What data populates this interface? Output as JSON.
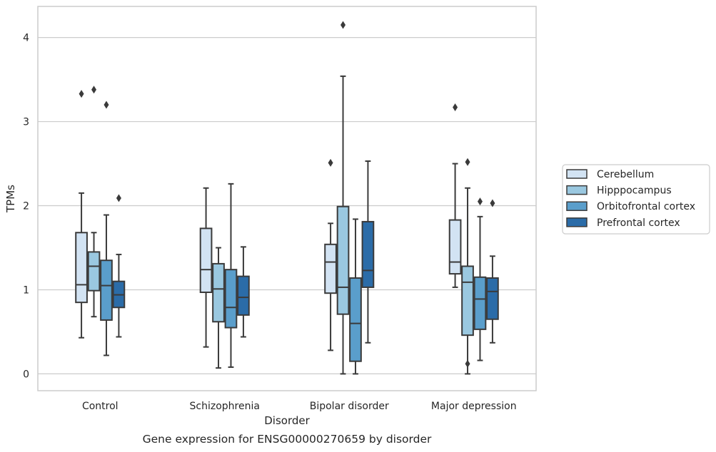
{
  "chart_data": {
    "type": "box",
    "caption": "Gene expression for ENSG00000270659 by disorder",
    "xlabel": "Disorder",
    "ylabel": "TPMs",
    "ylim": [
      -0.2,
      4.37
    ],
    "yticks": [
      0,
      1,
      2,
      3,
      4
    ],
    "categories": [
      "Control",
      "Schizophrenia",
      "Bipolar disorder",
      "Major depression"
    ],
    "grid": "horizontal",
    "legend_position": "right",
    "series": [
      {
        "name": "Cerebellum",
        "color": "#d2e3f3",
        "boxes": [
          {
            "whisker_low": 0.43,
            "q1": 0.85,
            "median": 1.06,
            "q3": 1.68,
            "whisker_high": 2.15,
            "outliers": [
              3.33
            ]
          },
          {
            "whisker_low": 0.32,
            "q1": 0.97,
            "median": 1.24,
            "q3": 1.73,
            "whisker_high": 2.21,
            "outliers": []
          },
          {
            "whisker_low": 0.28,
            "q1": 0.96,
            "median": 1.33,
            "q3": 1.54,
            "whisker_high": 1.79,
            "outliers": [
              2.51
            ]
          },
          {
            "whisker_low": 1.03,
            "q1": 1.19,
            "median": 1.33,
            "q3": 1.83,
            "whisker_high": 2.5,
            "outliers": [
              3.17
            ]
          }
        ]
      },
      {
        "name": "Hipppocampus",
        "color": "#9ac8e0",
        "boxes": [
          {
            "whisker_low": 0.68,
            "q1": 0.99,
            "median": 1.28,
            "q3": 1.45,
            "whisker_high": 1.68,
            "outliers": [
              3.38
            ]
          },
          {
            "whisker_low": 0.07,
            "q1": 0.62,
            "median": 1.01,
            "q3": 1.31,
            "whisker_high": 1.5,
            "outliers": []
          },
          {
            "whisker_low": 0.0,
            "q1": 0.71,
            "median": 1.03,
            "q3": 1.99,
            "whisker_high": 3.54,
            "outliers": [
              4.15
            ]
          },
          {
            "whisker_low": 0.0,
            "q1": 0.46,
            "median": 1.09,
            "q3": 1.28,
            "whisker_high": 2.21,
            "outliers": [
              0.12,
              2.52
            ]
          }
        ]
      },
      {
        "name": "Orbitofrontal cortex",
        "color": "#5a9ecb",
        "boxes": [
          {
            "whisker_low": 0.22,
            "q1": 0.64,
            "median": 1.05,
            "q3": 1.35,
            "whisker_high": 1.89,
            "outliers": [
              3.2
            ]
          },
          {
            "whisker_low": 0.08,
            "q1": 0.55,
            "median": 0.79,
            "q3": 1.24,
            "whisker_high": 2.26,
            "outliers": []
          },
          {
            "whisker_low": 0.0,
            "q1": 0.15,
            "median": 0.6,
            "q3": 1.14,
            "whisker_high": 1.84,
            "outliers": []
          },
          {
            "whisker_low": 0.16,
            "q1": 0.53,
            "median": 0.89,
            "q3": 1.15,
            "whisker_high": 1.87,
            "outliers": [
              2.05
            ]
          }
        ]
      },
      {
        "name": "Prefrontal cortex",
        "color": "#2b6ca8",
        "boxes": [
          {
            "whisker_low": 0.44,
            "q1": 0.79,
            "median": 0.94,
            "q3": 1.1,
            "whisker_high": 1.42,
            "outliers": [
              2.09
            ]
          },
          {
            "whisker_low": 0.44,
            "q1": 0.7,
            "median": 0.91,
            "q3": 1.16,
            "whisker_high": 1.51,
            "outliers": []
          },
          {
            "whisker_low": 0.37,
            "q1": 1.03,
            "median": 1.23,
            "q3": 1.81,
            "whisker_high": 2.53,
            "outliers": []
          },
          {
            "whisker_low": 0.37,
            "q1": 0.65,
            "median": 0.98,
            "q3": 1.14,
            "whisker_high": 1.4,
            "outliers": [
              2.03
            ]
          }
        ]
      }
    ]
  }
}
